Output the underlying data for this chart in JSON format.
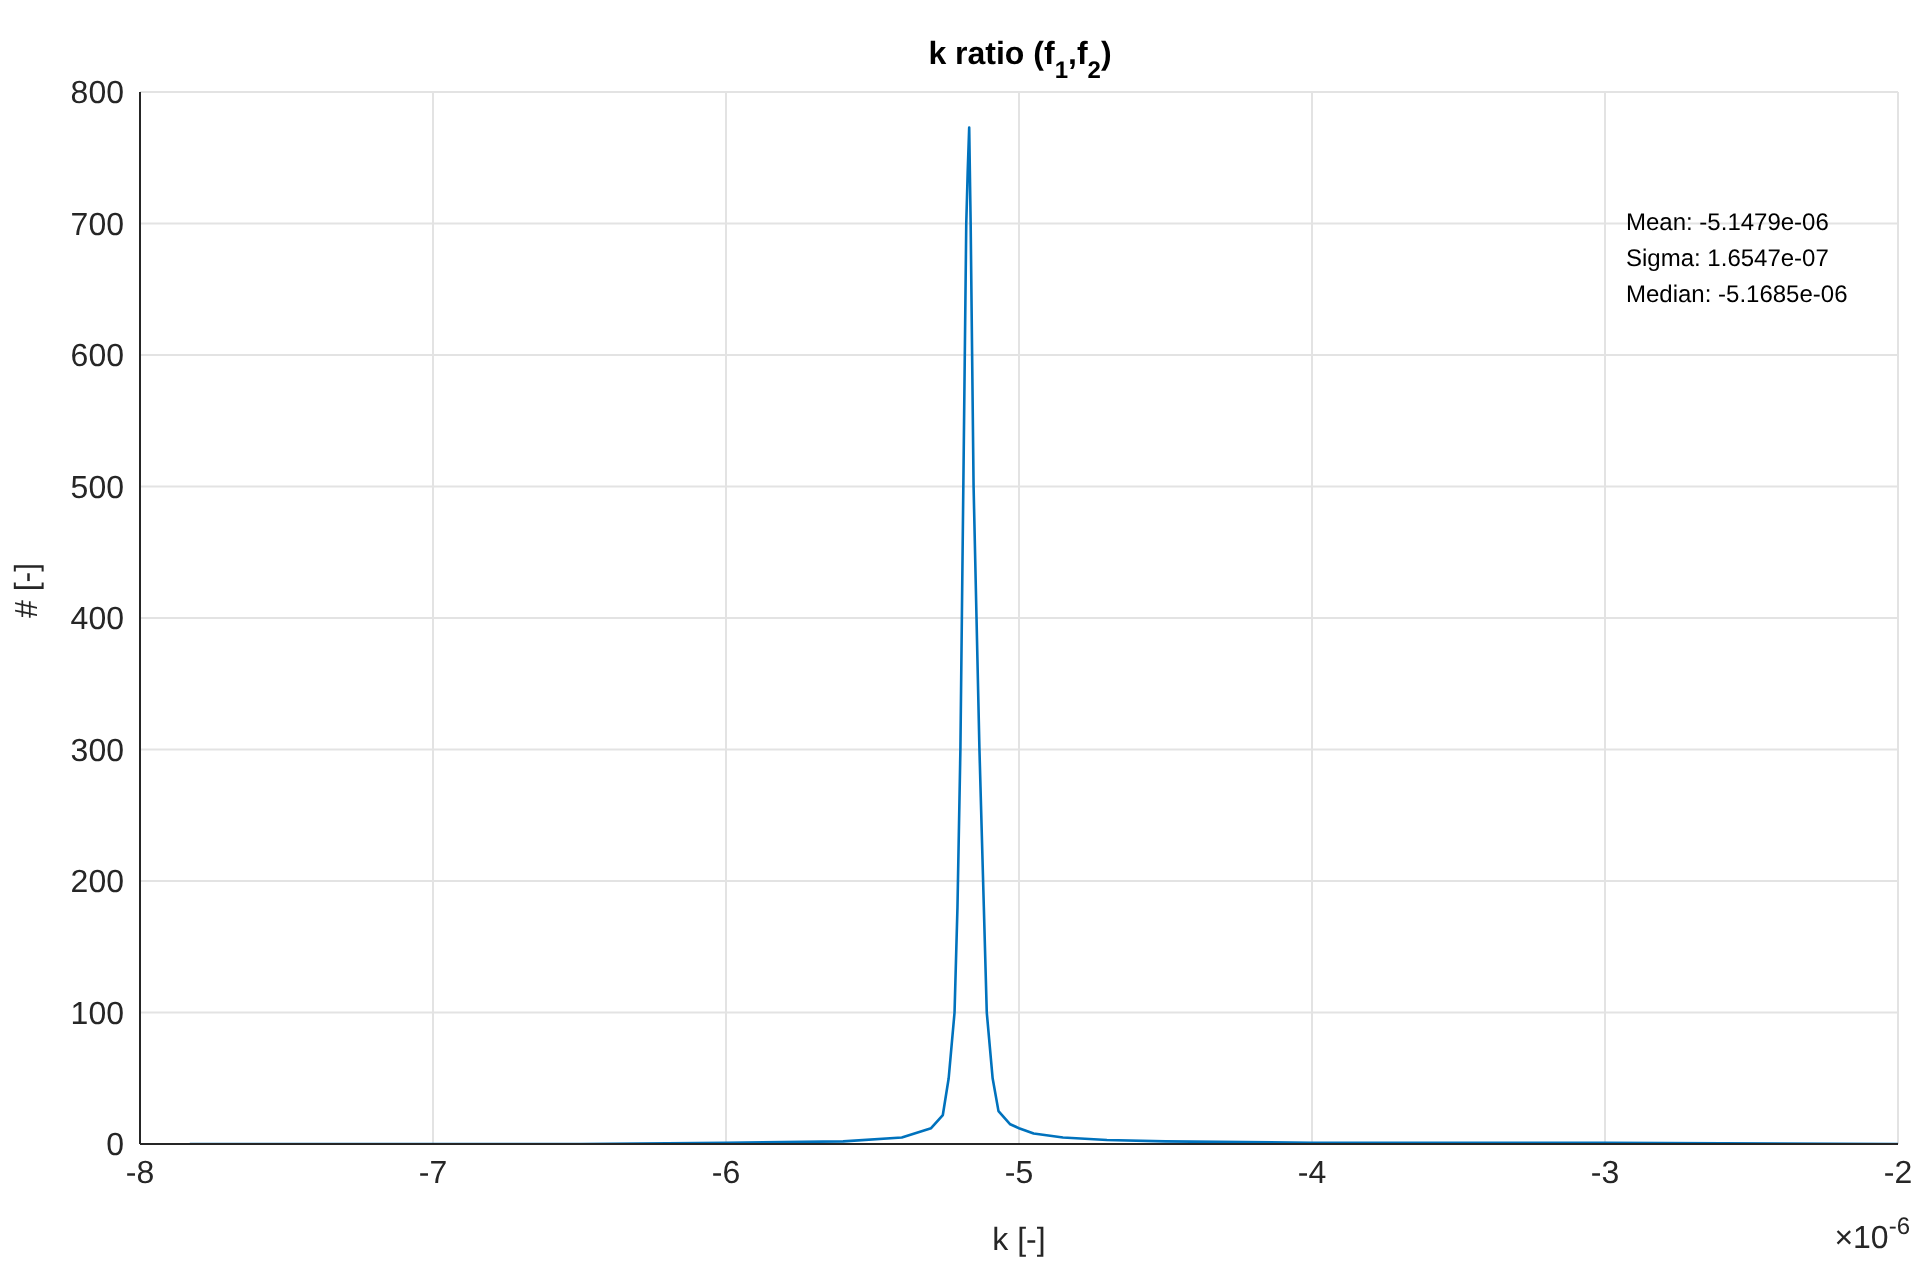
{
  "chart_data": {
    "type": "line",
    "title": "k ratio (f$_{1}$,f$_{2}$)",
    "xlabel": "k [-]",
    "ylabel": "# [-]",
    "annotations": [
      "Mean: -5.1479e-06",
      "Sigma: 1.6547e-07",
      "Median: -5.1685e-06",
      "×10$^{-6}$"
    ],
    "xlim": [
      -8,
      -2
    ],
    "xticks": [
      -8,
      -7,
      -6,
      -5,
      -4,
      -3,
      -2
    ],
    "ylim": [
      0,
      800
    ],
    "yticks": [
      0,
      100,
      200,
      300,
      400,
      500,
      600,
      700,
      800
    ],
    "grid": true,
    "legend": false,
    "marker": "none",
    "line_style": "solid",
    "series": [
      {
        "color": "#0072bd",
        "x": [
          -7.83,
          -6.5,
          -6,
          -5.6,
          -5.4,
          -5.3,
          -5.26,
          -5.24,
          -5.22,
          -5.21,
          -5.2,
          -5.195,
          -5.19,
          -5.185,
          -5.18,
          -5.175,
          -5.17,
          -5.165,
          -5.16,
          -5.155,
          -5.145,
          -5.135,
          -5.12,
          -5.11,
          -5.09,
          -5.07,
          -5.03,
          -5,
          -4.95,
          -4.85,
          -4.7,
          -4.5,
          -4,
          -3,
          -2
        ],
        "values": [
          0,
          0,
          1,
          2,
          5,
          12,
          22,
          50,
          100,
          180,
          300,
          400,
          500,
          600,
          700,
          740,
          773,
          700,
          600,
          500,
          400,
          300,
          180,
          100,
          50,
          25,
          15,
          12,
          8,
          5,
          3,
          2,
          1,
          1,
          0
        ]
      }
    ]
  }
}
